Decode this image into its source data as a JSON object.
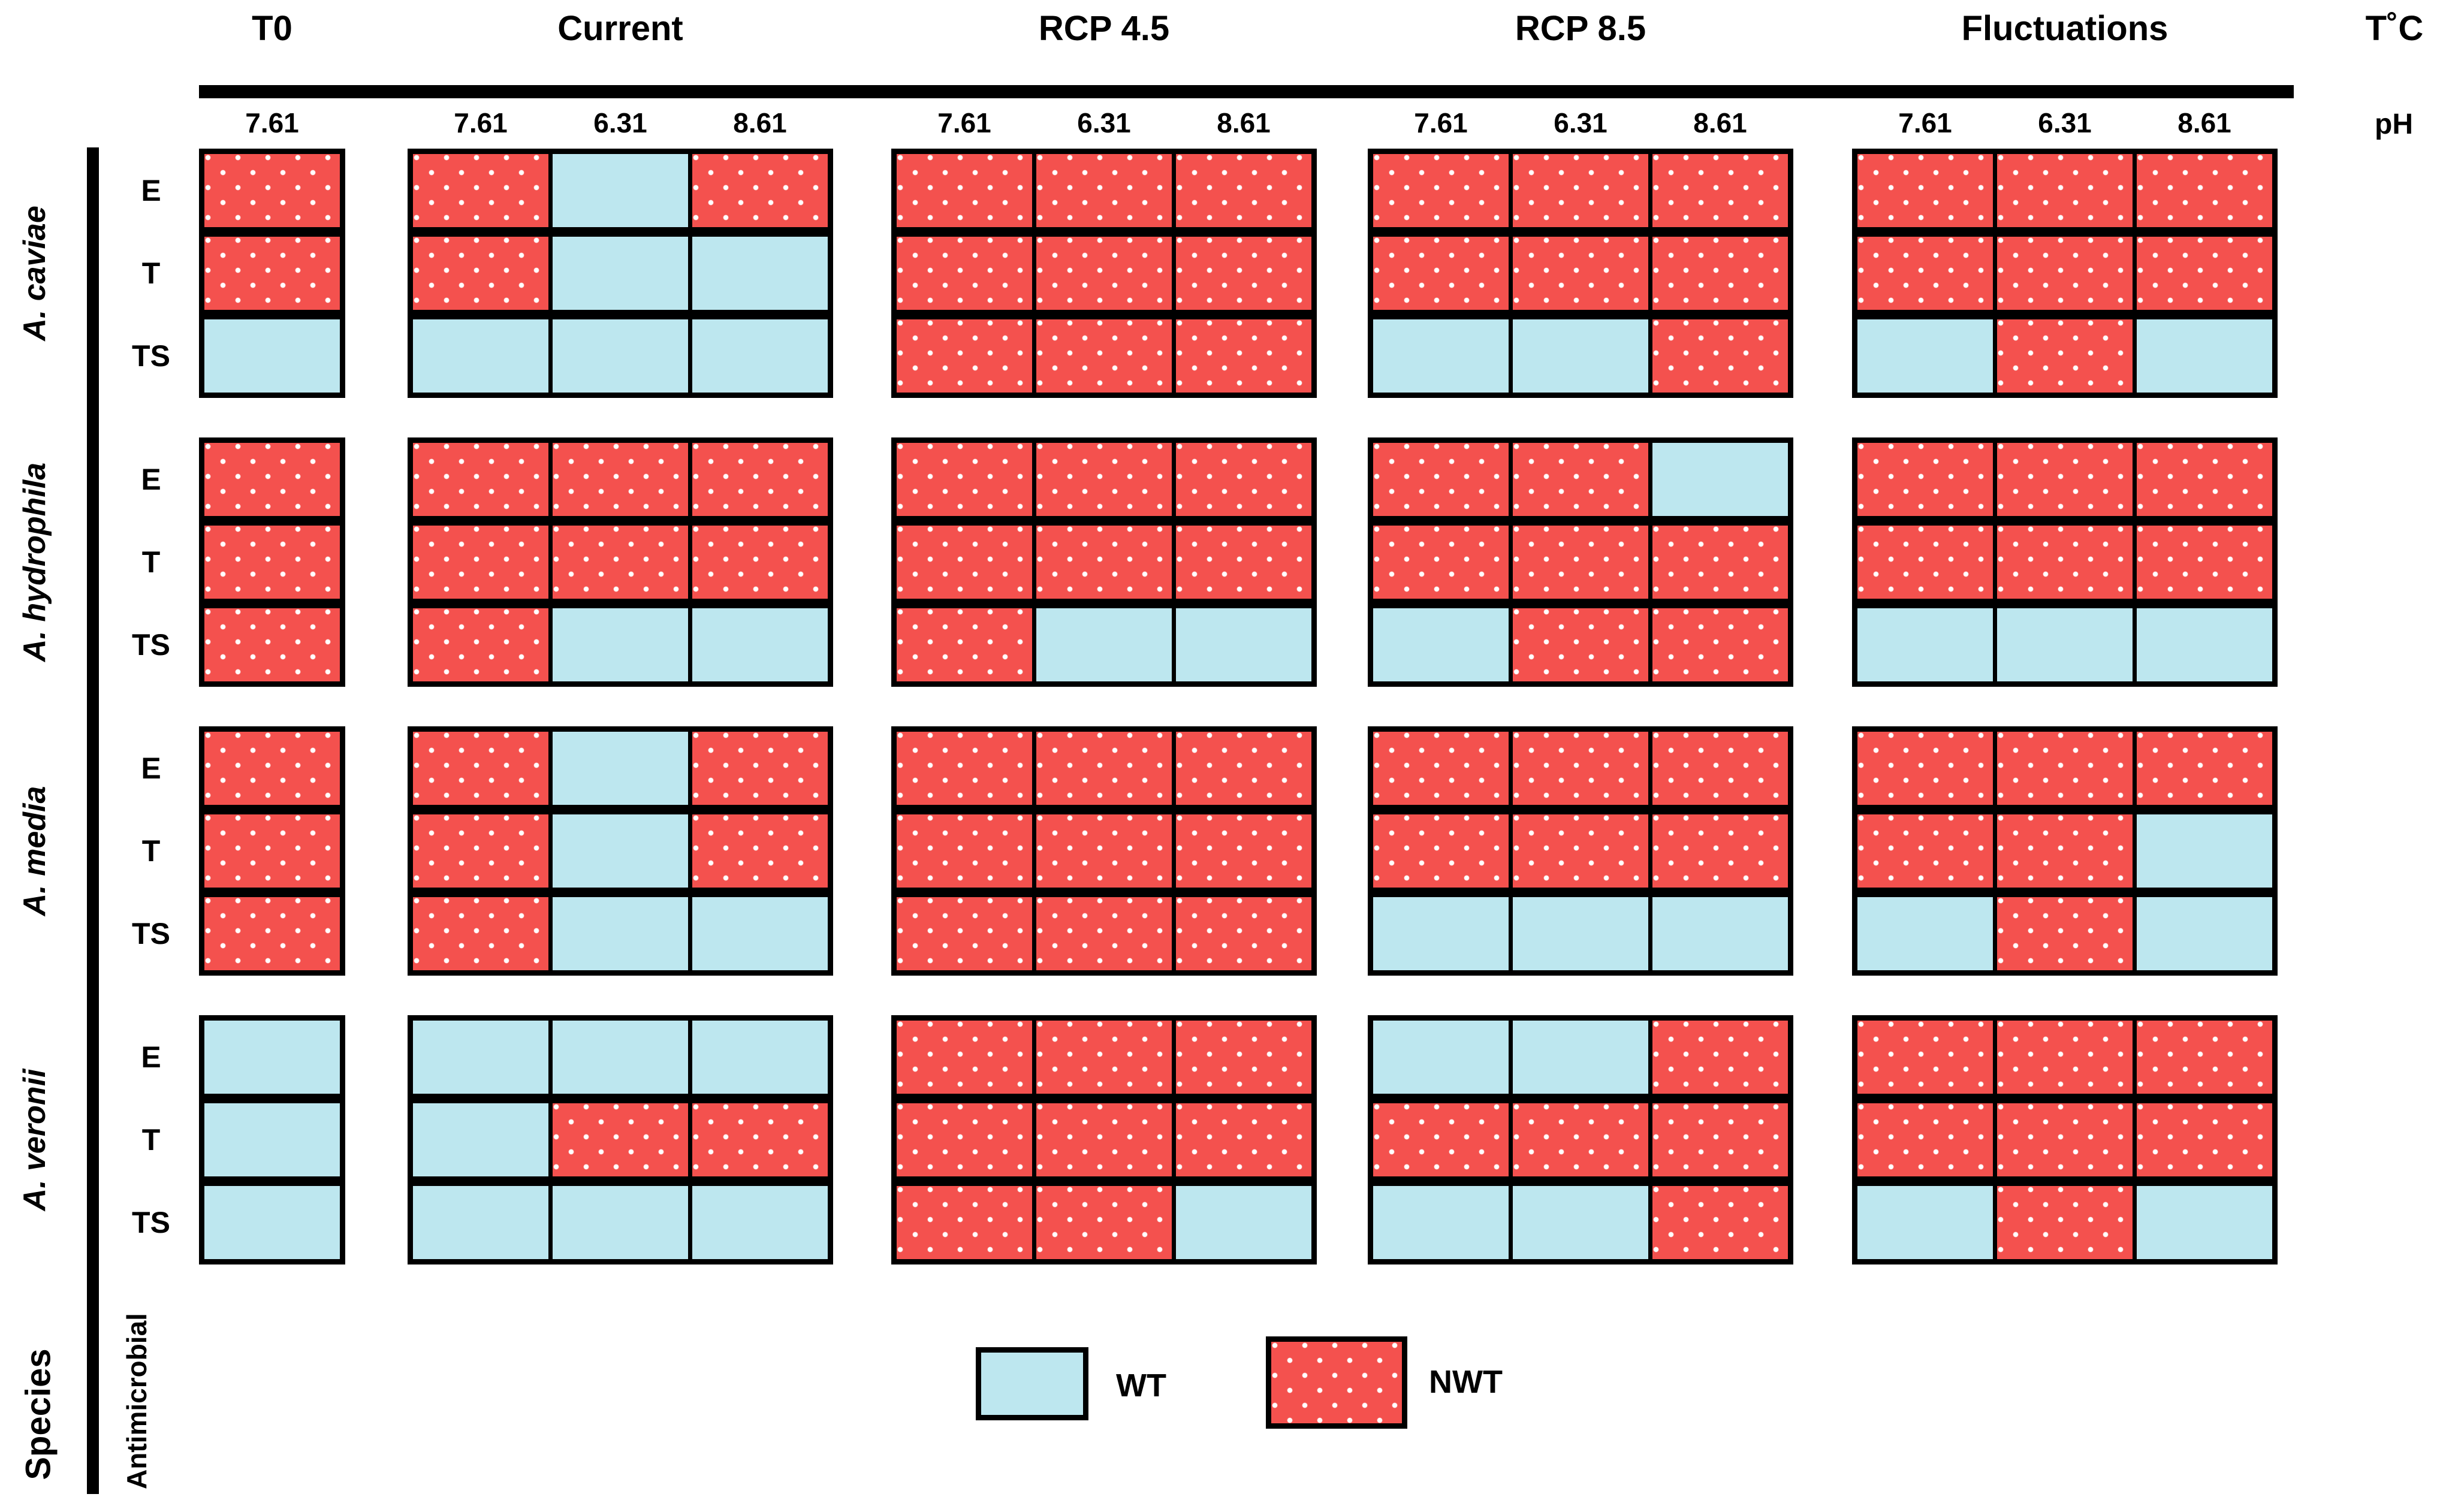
{
  "header": {
    "conditions": [
      {
        "label": "T0",
        "ph": [
          "7.61"
        ]
      },
      {
        "label": "Current",
        "ph": [
          "7.61",
          "6.31",
          "8.61"
        ]
      },
      {
        "label": "RCP 4.5",
        "ph": [
          "7.61",
          "6.31",
          "8.61"
        ]
      },
      {
        "label": "RCP 8.5",
        "ph": [
          "7.61",
          "6.31",
          "8.61"
        ]
      },
      {
        "label": "Fluctuations",
        "ph": [
          "7.61",
          "6.31",
          "8.61"
        ]
      }
    ],
    "temperature_axis_label": "T˚C",
    "ph_axis_label": "pH"
  },
  "left_axis": {
    "species_axis_label": "Species",
    "antimicrobial_axis_label": "Antimicrobial"
  },
  "legend": {
    "wt_label": "WT",
    "nwt_label": "NWT"
  },
  "colors": {
    "wt_fill": "#BDE7EF",
    "nwt_fill": "#F4514E",
    "dot": "#FFFFFF",
    "border": "#000000"
  },
  "chart_data": {
    "type": "heatmap",
    "title": "",
    "legend_entries": [
      "WT",
      "NWT"
    ],
    "column_groups": [
      {
        "condition": "T0",
        "ph": [
          "7.61"
        ]
      },
      {
        "condition": "Current",
        "ph": [
          "7.61",
          "6.31",
          "8.61"
        ]
      },
      {
        "condition": "RCP 4.5",
        "ph": [
          "7.61",
          "6.31",
          "8.61"
        ]
      },
      {
        "condition": "RCP 8.5",
        "ph": [
          "7.61",
          "6.31",
          "8.61"
        ]
      },
      {
        "condition": "Fluctuations",
        "ph": [
          "7.61",
          "6.31",
          "8.61"
        ]
      }
    ],
    "antimicrobials": [
      "E",
      "T",
      "TS"
    ],
    "species": [
      {
        "name": "A. caviae",
        "rows": {
          "E": [
            [
              "NWT"
            ],
            [
              "NWT",
              "WT",
              "NWT"
            ],
            [
              "NWT",
              "NWT",
              "NWT"
            ],
            [
              "NWT",
              "NWT",
              "NWT"
            ],
            [
              "NWT",
              "NWT",
              "NWT"
            ]
          ],
          "T": [
            [
              "NWT"
            ],
            [
              "NWT",
              "WT",
              "WT"
            ],
            [
              "NWT",
              "NWT",
              "NWT"
            ],
            [
              "NWT",
              "NWT",
              "NWT"
            ],
            [
              "NWT",
              "NWT",
              "NWT"
            ]
          ],
          "TS": [
            [
              "WT"
            ],
            [
              "WT",
              "WT",
              "WT"
            ],
            [
              "NWT",
              "NWT",
              "NWT"
            ],
            [
              "WT",
              "WT",
              "NWT"
            ],
            [
              "WT",
              "NWT",
              "WT"
            ]
          ]
        }
      },
      {
        "name": "A. hydrophila",
        "rows": {
          "E": [
            [
              "NWT"
            ],
            [
              "NWT",
              "NWT",
              "NWT"
            ],
            [
              "NWT",
              "NWT",
              "NWT"
            ],
            [
              "NWT",
              "NWT",
              "WT"
            ],
            [
              "NWT",
              "NWT",
              "NWT"
            ]
          ],
          "T": [
            [
              "NWT"
            ],
            [
              "NWT",
              "NWT",
              "NWT"
            ],
            [
              "NWT",
              "NWT",
              "NWT"
            ],
            [
              "NWT",
              "NWT",
              "NWT"
            ],
            [
              "NWT",
              "NWT",
              "NWT"
            ]
          ],
          "TS": [
            [
              "NWT"
            ],
            [
              "NWT",
              "WT",
              "WT"
            ],
            [
              "NWT",
              "WT",
              "WT"
            ],
            [
              "WT",
              "NWT",
              "NWT"
            ],
            [
              "WT",
              "WT",
              "WT"
            ]
          ]
        }
      },
      {
        "name": "A. media",
        "rows": {
          "E": [
            [
              "NWT"
            ],
            [
              "NWT",
              "WT",
              "NWT"
            ],
            [
              "NWT",
              "NWT",
              "NWT"
            ],
            [
              "NWT",
              "NWT",
              "NWT"
            ],
            [
              "NWT",
              "NWT",
              "NWT"
            ]
          ],
          "T": [
            [
              "NWT"
            ],
            [
              "NWT",
              "WT",
              "NWT"
            ],
            [
              "NWT",
              "NWT",
              "NWT"
            ],
            [
              "NWT",
              "NWT",
              "NWT"
            ],
            [
              "NWT",
              "NWT",
              "WT"
            ]
          ],
          "TS": [
            [
              "NWT"
            ],
            [
              "NWT",
              "WT",
              "WT"
            ],
            [
              "NWT",
              "NWT",
              "NWT"
            ],
            [
              "WT",
              "WT",
              "WT"
            ],
            [
              "WT",
              "NWT",
              "WT"
            ]
          ]
        }
      },
      {
        "name": "A. veronii",
        "rows": {
          "E": [
            [
              "WT"
            ],
            [
              "WT",
              "WT",
              "WT"
            ],
            [
              "NWT",
              "NWT",
              "NWT"
            ],
            [
              "WT",
              "WT",
              "NWT"
            ],
            [
              "NWT",
              "NWT",
              "NWT"
            ]
          ],
          "T": [
            [
              "WT"
            ],
            [
              "WT",
              "NWT",
              "NWT"
            ],
            [
              "NWT",
              "NWT",
              "NWT"
            ],
            [
              "NWT",
              "NWT",
              "NWT"
            ],
            [
              "NWT",
              "NWT",
              "NWT"
            ]
          ],
          "TS": [
            [
              "WT"
            ],
            [
              "WT",
              "WT",
              "WT"
            ],
            [
              "NWT",
              "NWT",
              "WT"
            ],
            [
              "WT",
              "WT",
              "NWT"
            ],
            [
              "WT",
              "NWT",
              "WT"
            ]
          ]
        }
      }
    ]
  }
}
